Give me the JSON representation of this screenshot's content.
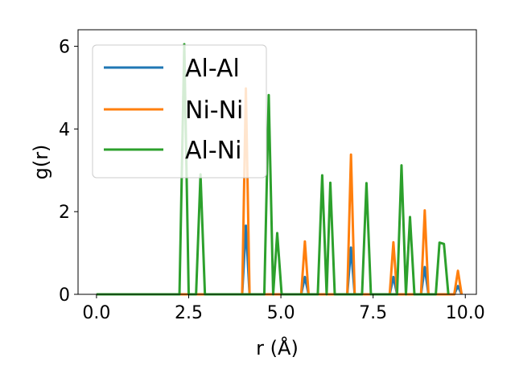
{
  "chart_data": {
    "type": "line",
    "title": "",
    "xlabel": "r (Å)",
    "ylabel": "g(r)",
    "xlim": [
      -0.5,
      10.3
    ],
    "ylim": [
      0,
      6.4
    ],
    "xticks": [
      0.0,
      2.5,
      5.0,
      7.5,
      10.0
    ],
    "xtick_labels": [
      "0.0",
      "2.5",
      "5.0",
      "7.5",
      "10.0"
    ],
    "yticks": [
      0,
      2,
      4,
      6
    ],
    "ytick_labels": [
      "0",
      "2",
      "4",
      "6"
    ],
    "grid": false,
    "legend_position": "upper-left",
    "series": [
      {
        "name": "Al-Al",
        "color": "#1f77b4",
        "x": [
          0,
          3.95,
          4.05,
          4.15,
          5.55,
          5.65,
          5.75,
          6.8,
          6.9,
          7.0,
          7.95,
          8.05,
          8.15,
          8.8,
          8.9,
          9.0,
          9.7,
          9.8,
          9.9
        ],
        "y": [
          0,
          0,
          1.66,
          0,
          0,
          0.42,
          0,
          0,
          1.13,
          0,
          0,
          0.42,
          0,
          0,
          0.66,
          0,
          0,
          0.2,
          0
        ]
      },
      {
        "name": "Ni-Ni",
        "color": "#ff7f0e",
        "x": [
          0,
          3.95,
          4.05,
          4.15,
          5.55,
          5.65,
          5.75,
          6.8,
          6.9,
          7.0,
          7.95,
          8.05,
          8.15,
          8.8,
          8.9,
          9.0,
          9.7,
          9.8,
          9.9
        ],
        "y": [
          0,
          0,
          4.98,
          0,
          0,
          1.28,
          0,
          0,
          3.38,
          0,
          0,
          1.26,
          0,
          0,
          2.03,
          0,
          0,
          0.57,
          0
        ]
      },
      {
        "name": "Al-Ni",
        "color": "#2ca02c",
        "x": [
          0,
          2.25,
          2.38,
          2.5,
          2.7,
          2.82,
          2.94,
          4.55,
          4.67,
          4.79,
          4.9,
          5.02,
          6.0,
          6.12,
          6.24,
          6.34,
          6.46,
          7.2,
          7.32,
          7.44,
          8.15,
          8.27,
          8.39,
          8.5,
          8.62,
          9.2,
          9.3,
          9.42,
          9.54
        ],
        "y": [
          0,
          0,
          6.05,
          0,
          0,
          2.9,
          0,
          0,
          4.82,
          0,
          1.48,
          0,
          0,
          2.88,
          0,
          2.7,
          0,
          0,
          2.69,
          0,
          0,
          3.12,
          0,
          1.87,
          0,
          0,
          1.25,
          1.22,
          0
        ]
      }
    ]
  }
}
